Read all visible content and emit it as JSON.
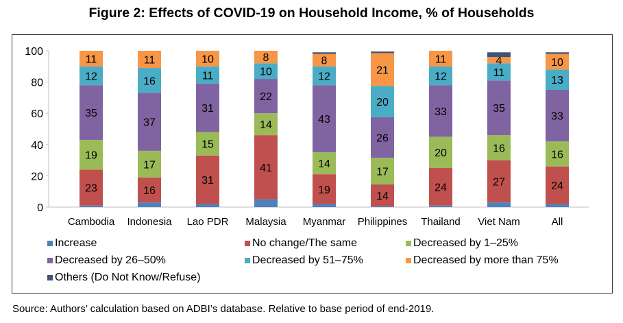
{
  "chart_data": {
    "type": "bar",
    "stacked": true,
    "title": "Figure 2: Effects of COVID-19 on Household Income, % of Households",
    "xlabel": "",
    "ylabel": "",
    "ylim": [
      0,
      100
    ],
    "yticks": [
      "0",
      "20",
      "40",
      "60",
      "80",
      "100"
    ],
    "categories": [
      "Cambodia",
      "Indonesia",
      "Lao PDR",
      "Malaysia",
      "Myanmar",
      "Philippines",
      "Thailand",
      "Viet Nam",
      "All"
    ],
    "series": [
      {
        "name": "Increase",
        "color": "#4f81bd",
        "values": [
          1,
          3,
          2,
          5,
          2,
          0.5,
          1,
          3,
          2
        ],
        "labels": false
      },
      {
        "name": "No change/The same",
        "color": "#c0504d",
        "values": [
          23,
          16,
          31,
          41,
          19,
          14,
          24,
          27,
          24
        ],
        "labels": true
      },
      {
        "name": "Decreased by 1–25%",
        "color": "#9bbb59",
        "values": [
          19,
          17,
          15,
          14,
          14,
          17,
          20,
          16,
          16
        ],
        "labels": true
      },
      {
        "name": "Decreased by 26–50%",
        "color": "#8064a2",
        "values": [
          35,
          37,
          31,
          22,
          43,
          26,
          33,
          35,
          33
        ],
        "labels": true
      },
      {
        "name": "Decreased by 51–75%",
        "color": "#4bacc6",
        "values": [
          12,
          16,
          11,
          10,
          12,
          20,
          12,
          11,
          13
        ],
        "labels": true
      },
      {
        "name": "Decreased by more than 75%",
        "color": "#f79646",
        "values": [
          11,
          11,
          10,
          8,
          8,
          21,
          11,
          4,
          10
        ],
        "labels": true
      },
      {
        "name": "Others (Do Not Know/Refuse)",
        "color": "#3f5478",
        "values": [
          0,
          0.5,
          0,
          0,
          1,
          1,
          0,
          3,
          1
        ],
        "labels": false
      }
    ],
    "legend_position": "bottom",
    "grid": false
  },
  "source": "Source: Authors’ calculation based on ADBI’s database. Relative to base period of end-2019."
}
